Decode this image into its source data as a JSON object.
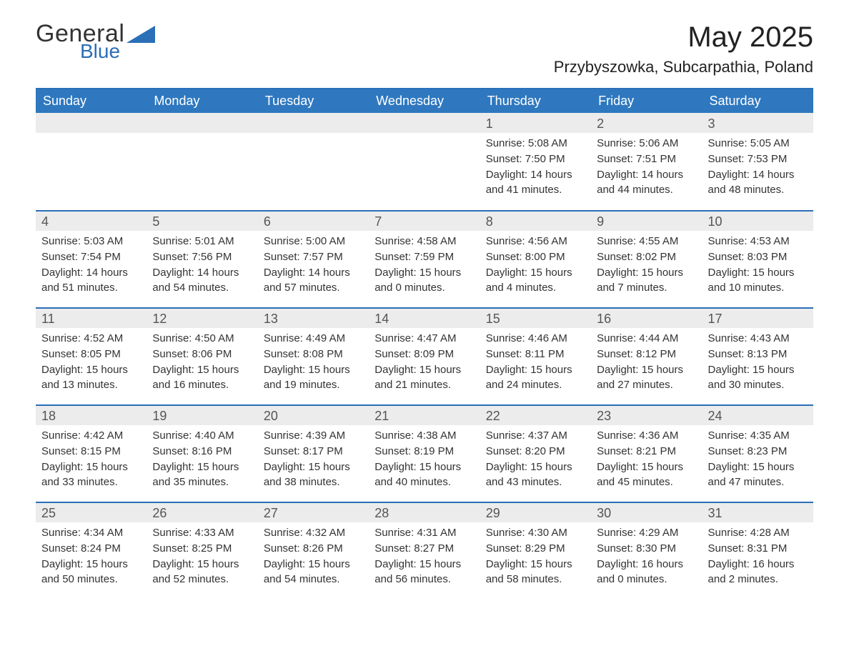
{
  "brand": {
    "word1": "General",
    "word2": "Blue",
    "word1_color": "#333333",
    "word2_color": "#2a6fb8",
    "shape_color": "#2a6fb8"
  },
  "title": "May 2025",
  "location": "Przybyszowka, Subcarpathia, Poland",
  "colors": {
    "header_bg": "#2f78bf",
    "header_text": "#ffffff",
    "daynum_bg": "#ececec",
    "daynum_text": "#555555",
    "row_divider": "#2a6fb8",
    "body_text": "#333333",
    "page_bg": "#ffffff"
  },
  "typography": {
    "title_fontsize": 40,
    "location_fontsize": 22,
    "header_fontsize": 18,
    "daynum_fontsize": 18,
    "body_fontsize": 15
  },
  "days_of_week": [
    "Sunday",
    "Monday",
    "Tuesday",
    "Wednesday",
    "Thursday",
    "Friday",
    "Saturday"
  ],
  "weeks": [
    [
      null,
      null,
      null,
      null,
      {
        "n": "1",
        "sunrise": "Sunrise: 5:08 AM",
        "sunset": "Sunset: 7:50 PM",
        "daylight": "Daylight: 14 hours and 41 minutes."
      },
      {
        "n": "2",
        "sunrise": "Sunrise: 5:06 AM",
        "sunset": "Sunset: 7:51 PM",
        "daylight": "Daylight: 14 hours and 44 minutes."
      },
      {
        "n": "3",
        "sunrise": "Sunrise: 5:05 AM",
        "sunset": "Sunset: 7:53 PM",
        "daylight": "Daylight: 14 hours and 48 minutes."
      }
    ],
    [
      {
        "n": "4",
        "sunrise": "Sunrise: 5:03 AM",
        "sunset": "Sunset: 7:54 PM",
        "daylight": "Daylight: 14 hours and 51 minutes."
      },
      {
        "n": "5",
        "sunrise": "Sunrise: 5:01 AM",
        "sunset": "Sunset: 7:56 PM",
        "daylight": "Daylight: 14 hours and 54 minutes."
      },
      {
        "n": "6",
        "sunrise": "Sunrise: 5:00 AM",
        "sunset": "Sunset: 7:57 PM",
        "daylight": "Daylight: 14 hours and 57 minutes."
      },
      {
        "n": "7",
        "sunrise": "Sunrise: 4:58 AM",
        "sunset": "Sunset: 7:59 PM",
        "daylight": "Daylight: 15 hours and 0 minutes."
      },
      {
        "n": "8",
        "sunrise": "Sunrise: 4:56 AM",
        "sunset": "Sunset: 8:00 PM",
        "daylight": "Daylight: 15 hours and 4 minutes."
      },
      {
        "n": "9",
        "sunrise": "Sunrise: 4:55 AM",
        "sunset": "Sunset: 8:02 PM",
        "daylight": "Daylight: 15 hours and 7 minutes."
      },
      {
        "n": "10",
        "sunrise": "Sunrise: 4:53 AM",
        "sunset": "Sunset: 8:03 PM",
        "daylight": "Daylight: 15 hours and 10 minutes."
      }
    ],
    [
      {
        "n": "11",
        "sunrise": "Sunrise: 4:52 AM",
        "sunset": "Sunset: 8:05 PM",
        "daylight": "Daylight: 15 hours and 13 minutes."
      },
      {
        "n": "12",
        "sunrise": "Sunrise: 4:50 AM",
        "sunset": "Sunset: 8:06 PM",
        "daylight": "Daylight: 15 hours and 16 minutes."
      },
      {
        "n": "13",
        "sunrise": "Sunrise: 4:49 AM",
        "sunset": "Sunset: 8:08 PM",
        "daylight": "Daylight: 15 hours and 19 minutes."
      },
      {
        "n": "14",
        "sunrise": "Sunrise: 4:47 AM",
        "sunset": "Sunset: 8:09 PM",
        "daylight": "Daylight: 15 hours and 21 minutes."
      },
      {
        "n": "15",
        "sunrise": "Sunrise: 4:46 AM",
        "sunset": "Sunset: 8:11 PM",
        "daylight": "Daylight: 15 hours and 24 minutes."
      },
      {
        "n": "16",
        "sunrise": "Sunrise: 4:44 AM",
        "sunset": "Sunset: 8:12 PM",
        "daylight": "Daylight: 15 hours and 27 minutes."
      },
      {
        "n": "17",
        "sunrise": "Sunrise: 4:43 AM",
        "sunset": "Sunset: 8:13 PM",
        "daylight": "Daylight: 15 hours and 30 minutes."
      }
    ],
    [
      {
        "n": "18",
        "sunrise": "Sunrise: 4:42 AM",
        "sunset": "Sunset: 8:15 PM",
        "daylight": "Daylight: 15 hours and 33 minutes."
      },
      {
        "n": "19",
        "sunrise": "Sunrise: 4:40 AM",
        "sunset": "Sunset: 8:16 PM",
        "daylight": "Daylight: 15 hours and 35 minutes."
      },
      {
        "n": "20",
        "sunrise": "Sunrise: 4:39 AM",
        "sunset": "Sunset: 8:17 PM",
        "daylight": "Daylight: 15 hours and 38 minutes."
      },
      {
        "n": "21",
        "sunrise": "Sunrise: 4:38 AM",
        "sunset": "Sunset: 8:19 PM",
        "daylight": "Daylight: 15 hours and 40 minutes."
      },
      {
        "n": "22",
        "sunrise": "Sunrise: 4:37 AM",
        "sunset": "Sunset: 8:20 PM",
        "daylight": "Daylight: 15 hours and 43 minutes."
      },
      {
        "n": "23",
        "sunrise": "Sunrise: 4:36 AM",
        "sunset": "Sunset: 8:21 PM",
        "daylight": "Daylight: 15 hours and 45 minutes."
      },
      {
        "n": "24",
        "sunrise": "Sunrise: 4:35 AM",
        "sunset": "Sunset: 8:23 PM",
        "daylight": "Daylight: 15 hours and 47 minutes."
      }
    ],
    [
      {
        "n": "25",
        "sunrise": "Sunrise: 4:34 AM",
        "sunset": "Sunset: 8:24 PM",
        "daylight": "Daylight: 15 hours and 50 minutes."
      },
      {
        "n": "26",
        "sunrise": "Sunrise: 4:33 AM",
        "sunset": "Sunset: 8:25 PM",
        "daylight": "Daylight: 15 hours and 52 minutes."
      },
      {
        "n": "27",
        "sunrise": "Sunrise: 4:32 AM",
        "sunset": "Sunset: 8:26 PM",
        "daylight": "Daylight: 15 hours and 54 minutes."
      },
      {
        "n": "28",
        "sunrise": "Sunrise: 4:31 AM",
        "sunset": "Sunset: 8:27 PM",
        "daylight": "Daylight: 15 hours and 56 minutes."
      },
      {
        "n": "29",
        "sunrise": "Sunrise: 4:30 AM",
        "sunset": "Sunset: 8:29 PM",
        "daylight": "Daylight: 15 hours and 58 minutes."
      },
      {
        "n": "30",
        "sunrise": "Sunrise: 4:29 AM",
        "sunset": "Sunset: 8:30 PM",
        "daylight": "Daylight: 16 hours and 0 minutes."
      },
      {
        "n": "31",
        "sunrise": "Sunrise: 4:28 AM",
        "sunset": "Sunset: 8:31 PM",
        "daylight": "Daylight: 16 hours and 2 minutes."
      }
    ]
  ]
}
